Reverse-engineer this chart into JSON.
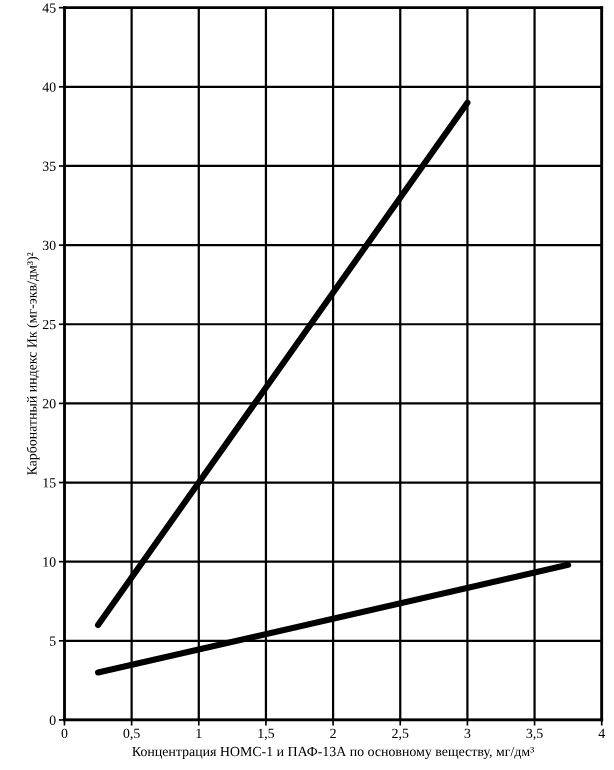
{
  "chart_data": {
    "type": "line",
    "xlabel": "Концентрация НОМС-1 и ПАФ-13А по основному веществу, мг/дм³",
    "ylabel": "Карбонатный индекс Ик (мг-экв/дм³)²",
    "series": [
      {
        "color": "#000000",
        "x": [
          0.25,
          3.0
        ],
        "values": [
          6,
          39
        ]
      },
      {
        "color": "#000000",
        "x": [
          0.25,
          3.75
        ],
        "values": [
          3,
          9.8
        ]
      }
    ],
    "xlim": [
      0,
      4
    ],
    "ylim": [
      0,
      45
    ],
    "xticks": [
      0,
      {
        "value": 0.5,
        "label": "0,5"
      },
      1,
      {
        "value": 1.5,
        "label": "1,5"
      },
      2,
      {
        "value": 2.5,
        "label": "2,5"
      },
      3,
      {
        "value": 3.5,
        "label": "3,5"
      },
      4
    ],
    "yticks": [
      0,
      5,
      10,
      15,
      20,
      25,
      30,
      35,
      40,
      45
    ],
    "grid": true,
    "marker": "none",
    "line_style": "solid",
    "legend": false
  }
}
